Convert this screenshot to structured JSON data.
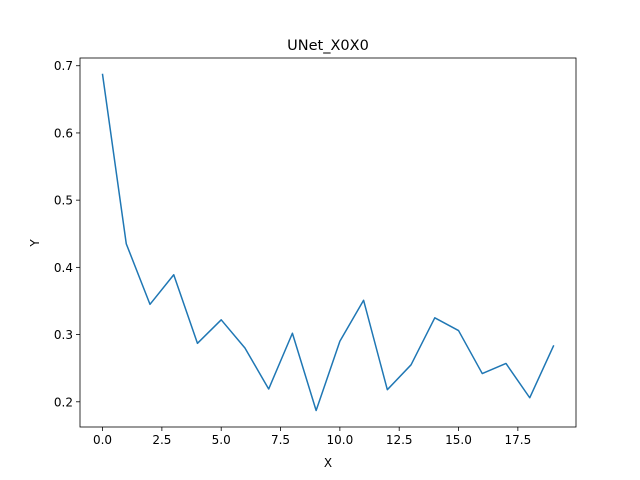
{
  "chart_data": {
    "type": "line",
    "title": "UNet_X0X0",
    "xlabel": "X",
    "ylabel": "Y",
    "xlim": [
      -0.95,
      19.95
    ],
    "ylim": [
      0.1625,
      0.7115
    ],
    "xticks": [
      0,
      2.5,
      5,
      7.5,
      10,
      12.5,
      15,
      17.5
    ],
    "xtick_labels": [
      "0.0",
      "2.5",
      "5.0",
      "7.5",
      "10.0",
      "12.5",
      "15.0",
      "17.5"
    ],
    "yticks": [
      0.2,
      0.3,
      0.4,
      0.5,
      0.6,
      0.7
    ],
    "ytick_labels": [
      "0.2",
      "0.3",
      "0.4",
      "0.5",
      "0.6",
      "0.7"
    ],
    "grid": false,
    "legend": "none",
    "series": [
      {
        "color": "#1f77b4",
        "x": [
          0,
          1,
          2,
          3,
          4,
          5,
          6,
          7,
          8,
          9,
          10,
          11,
          12,
          13,
          14,
          15,
          16,
          17,
          18,
          19
        ],
        "values": [
          0.687,
          0.435,
          0.345,
          0.389,
          0.287,
          0.322,
          0.28,
          0.219,
          0.302,
          0.187,
          0.29,
          0.351,
          0.218,
          0.255,
          0.325,
          0.306,
          0.242,
          0.257,
          0.206,
          0.283
        ]
      }
    ]
  }
}
